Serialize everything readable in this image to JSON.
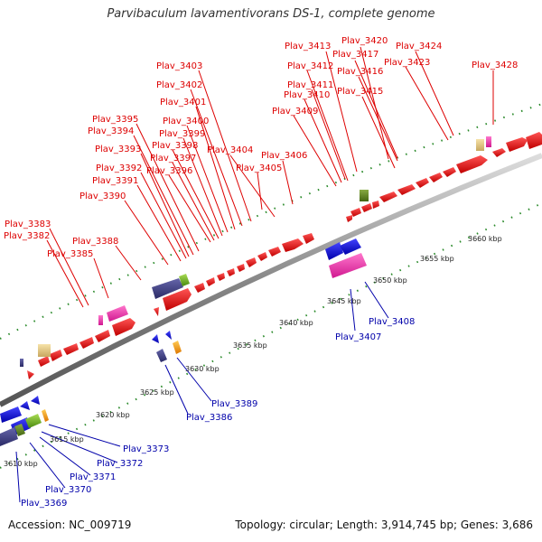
{
  "title": "Parvibaculum lavamentivorans DS-1, complete genome",
  "footer": {
    "accession": "Accession: NC_009719",
    "summary": "Topology: circular; Length: 3,914,745 bp; Genes: 3,686"
  },
  "colors": {
    "top_strand": "#e00000",
    "bottom_strand": "#0000cc",
    "backbone": "#999999",
    "tick_marks": "#2a8a2a",
    "top_label": "#dd0000",
    "bottom_label": "#0000aa"
  },
  "ticks": [
    {
      "label": "3610 kbp"
    },
    {
      "label": "3615 kbp"
    },
    {
      "label": "3620 kbp"
    },
    {
      "label": "3625 kbp"
    },
    {
      "label": "3630 kbp"
    },
    {
      "label": "3635 kbp"
    },
    {
      "label": "3640 kbp"
    },
    {
      "label": "3645 kbp"
    },
    {
      "label": "3650 kbp"
    },
    {
      "label": "3655 kbp"
    },
    {
      "label": "3660 kbp"
    }
  ],
  "top_labels": [
    "Plav_3413",
    "Plav_3420",
    "Plav_3424",
    "Plav_3417",
    "Plav_3403",
    "Plav_3412",
    "Plav_3416",
    "Plav_3423",
    "Plav_3428",
    "Plav_3402",
    "Plav_3411",
    "Plav_3410",
    "Plav_3415",
    "Plav_3401",
    "Plav_3409",
    "Plav_3395",
    "Plav_3400",
    "Plav_3394",
    "Plav_3399",
    "Plav_3393",
    "Plav_3398",
    "Plav_3404",
    "Plav_3397",
    "Plav_3406",
    "Plav_3392",
    "Plav_3396",
    "Plav_3405",
    "Plav_3391",
    "Plav_3390",
    "Plav_3383",
    "Plav_3382",
    "Plav_3388",
    "Plav_3385"
  ],
  "bottom_labels": [
    "Plav_3408",
    "Plav_3407",
    "Plav_3389",
    "Plav_3386",
    "Plav_3373",
    "Plav_3372",
    "Plav_3371",
    "Plav_3370",
    "Plav_3369"
  ]
}
